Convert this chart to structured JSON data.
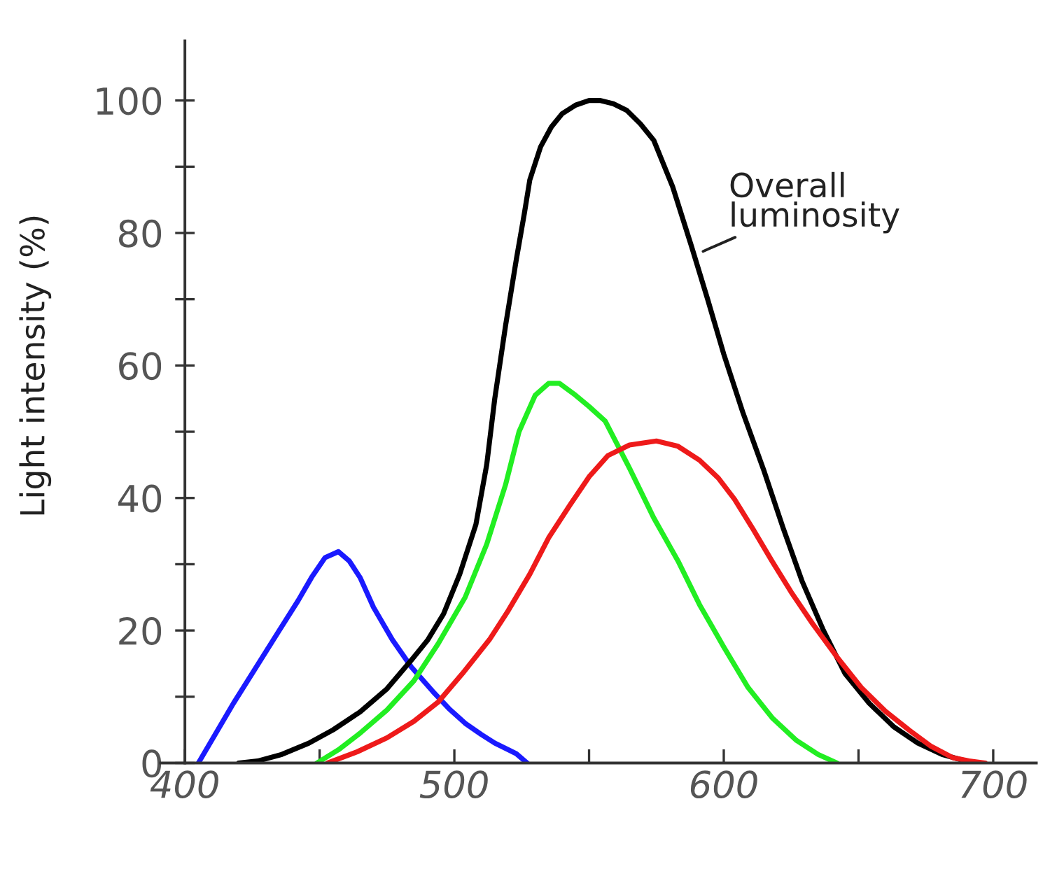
{
  "chart_data": {
    "type": "line",
    "ylabel": "Light intensity (%)",
    "xlim": [
      391,
      716
    ],
    "ylim": [
      0,
      109
    ],
    "xticks": [
      400,
      {
        "value": 450,
        "label": null
      },
      500,
      {
        "value": 550,
        "label": null
      },
      600,
      {
        "value": 650,
        "label": null
      },
      700
    ],
    "yticks": [
      0,
      {
        "value": 10,
        "label": null
      },
      20,
      {
        "value": 30,
        "label": null
      },
      40,
      {
        "value": 50,
        "label": null
      },
      60,
      {
        "value": 70,
        "label": null
      },
      80,
      {
        "value": 90,
        "label": null
      },
      100
    ],
    "grid": false,
    "marker": "none",
    "line_style": "solid",
    "annotations": [
      {
        "text": "Overall\nluminosity",
        "x": 591,
        "y": 77
      }
    ],
    "series": [
      {
        "color": "#1a1aff",
        "x": [
          405,
          418,
          435,
          442,
          447,
          452,
          457,
          461,
          465,
          470,
          477,
          484,
          492,
          498,
          504,
          510,
          515,
          520,
          523,
          527
        ],
        "values": [
          0,
          9,
          20,
          24.5,
          28,
          31,
          31.9,
          30.5,
          28,
          23.5,
          18.6,
          14.5,
          10.8,
          8.2,
          6,
          4.3,
          3,
          2,
          1.4,
          0
        ]
      },
      {
        "color": "#000000",
        "x": [
          420,
          427,
          436,
          446,
          455,
          465,
          475,
          484,
          490,
          496,
          502,
          508,
          512,
          515,
          519,
          523,
          526,
          528,
          532,
          536,
          540,
          545,
          550,
          554,
          559,
          564,
          569,
          574,
          581,
          588,
          594,
          600,
          607,
          615,
          622,
          629,
          637,
          645,
          654,
          663,
          672,
          681,
          688,
          694
        ],
        "values": [
          0,
          0.3,
          1.3,
          3,
          5,
          7.7,
          11.2,
          15.5,
          18.5,
          22.5,
          28.5,
          36,
          45,
          55,
          66,
          76,
          83,
          88,
          93,
          96,
          98,
          99.3,
          100,
          100,
          99.5,
          98.5,
          96.5,
          94,
          87,
          78,
          70,
          61.7,
          53,
          44,
          35.5,
          27.5,
          20,
          13.5,
          9,
          5.5,
          3,
          1.3,
          0.5,
          0
        ]
      },
      {
        "color": "#22ee22",
        "x": [
          449,
          457,
          465,
          475,
          485,
          494,
          504,
          512,
          519,
          524,
          530,
          535,
          539,
          545,
          550,
          556,
          565,
          574,
          583,
          591,
          600,
          609,
          618,
          627,
          635,
          642
        ],
        "values": [
          0,
          2,
          4.5,
          8,
          12.4,
          18,
          25,
          33,
          42,
          50,
          55.5,
          57.3,
          57.3,
          55.5,
          53.8,
          51.6,
          44.5,
          37,
          30.5,
          23.9,
          17.5,
          11.4,
          6.8,
          3.4,
          1.3,
          0
        ]
      },
      {
        "color": "#ee1a1a",
        "x": [
          453,
          464,
          475,
          485,
          494,
          503,
          513,
          520,
          528,
          535,
          543,
          550,
          557,
          565,
          575,
          583,
          591,
          598,
          604,
          611,
          618,
          625,
          633,
          642,
          651,
          660,
          669,
          677,
          685,
          691,
          697
        ],
        "values": [
          0,
          1.7,
          3.8,
          6.3,
          9.2,
          13.5,
          18.6,
          23,
          28.5,
          34,
          39,
          43.2,
          46.4,
          48,
          48.6,
          47.8,
          45.7,
          43,
          39.8,
          35.2,
          30.4,
          25.8,
          21,
          16,
          11.4,
          7.8,
          4.9,
          2.5,
          0.8,
          0.3,
          0
        ]
      }
    ]
  }
}
